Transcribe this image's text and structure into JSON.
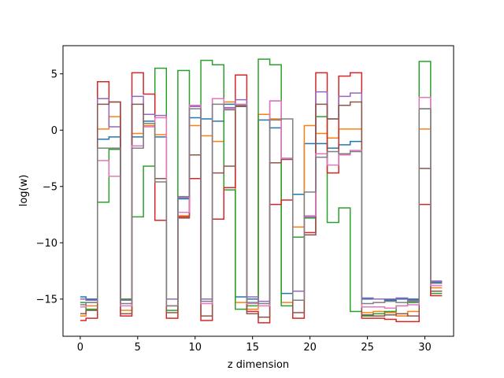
{
  "chart_data": {
    "type": "line",
    "step": true,
    "title": "",
    "xlabel": "z dimension",
    "ylabel": "log(w)",
    "xlim": [
      -1.5,
      32.5
    ],
    "ylim": [
      -18.3,
      7.5
    ],
    "xticks": [
      0,
      5,
      10,
      15,
      20,
      25,
      30
    ],
    "yticks": [
      -15,
      -10,
      -5,
      0,
      5
    ],
    "ytick_labels": [
      "−15",
      "−10",
      "−5",
      "0",
      "5"
    ],
    "grid": false,
    "legend": "none",
    "x": [
      0,
      1,
      2,
      3,
      4,
      5,
      6,
      7,
      8,
      9,
      10,
      11,
      12,
      13,
      14,
      15,
      16,
      17,
      18,
      19,
      20,
      21,
      22,
      23,
      24,
      25,
      26,
      27,
      28,
      29,
      30,
      31
    ],
    "series": [
      {
        "color": "#1f77b4",
        "values": [
          -14.8,
          -15.0,
          -0.8,
          -0.6,
          -15.0,
          -0.6,
          0.8,
          -0.6,
          -15.0,
          -6.1,
          1.1,
          1.0,
          0.8,
          2.3,
          -14.8,
          -15.0,
          0.9,
          0.2,
          -14.5,
          -5.7,
          -1.2,
          -1.2,
          -1.6,
          -1.3,
          -1.0,
          -15.0,
          -15.0,
          -15.1,
          -15.0,
          -15.0,
          1.9,
          -13.5
        ]
      },
      {
        "color": "#ff7f0e",
        "values": [
          -16.5,
          -15.6,
          0.1,
          1.2,
          -16.0,
          -0.3,
          0.4,
          -0.4,
          -15.6,
          -7.6,
          0.4,
          -0.5,
          -1.0,
          2.5,
          -15.3,
          -15.9,
          1.4,
          1.0,
          -15.3,
          -8.6,
          0.4,
          -0.3,
          -0.7,
          0.1,
          0.1,
          -16.2,
          -16.1,
          -16.2,
          -16.5,
          -16.1,
          0.1,
          -14.0
        ]
      },
      {
        "color": "#2ca02c",
        "values": [
          -15.3,
          -15.9,
          -6.4,
          -1.7,
          -15.0,
          -7.7,
          -3.2,
          5.5,
          -16.0,
          5.3,
          -4.3,
          6.2,
          5.8,
          -5.3,
          -15.9,
          -15.6,
          6.3,
          5.8,
          -15.6,
          -9.5,
          -7.8,
          1.2,
          -8.2,
          -6.9,
          -16.1,
          -16.5,
          -16.3,
          -16.1,
          -15.6,
          -15.3,
          6.1,
          -14.5
        ]
      },
      {
        "color": "#d62728",
        "values": [
          -16.9,
          -16.7,
          4.3,
          2.5,
          -16.5,
          5.1,
          3.2,
          -8.0,
          -16.7,
          -7.7,
          -4.3,
          -16.9,
          -7.9,
          -5.1,
          4.9,
          -16.1,
          -17.1,
          -6.6,
          -6.2,
          -16.7,
          -9.1,
          5.1,
          -3.8,
          4.8,
          5.1,
          -16.7,
          -16.7,
          -16.8,
          -17.0,
          -17.0,
          -6.6,
          -14.7
        ]
      },
      {
        "color": "#9467bd",
        "values": [
          -15.0,
          -15.1,
          2.8,
          0.3,
          -15.1,
          3.0,
          1.4,
          1.3,
          -15.0,
          -6.0,
          2.1,
          -15.0,
          2.8,
          2.0,
          2.7,
          -14.8,
          -15.2,
          2.6,
          -2.5,
          -14.3,
          -7.7,
          3.4,
          1.0,
          3.0,
          3.3,
          -14.9,
          -15.0,
          -15.0,
          -14.9,
          -15.1,
          2.9,
          -13.4
        ]
      },
      {
        "color": "#8c564b",
        "values": [
          -16.3,
          -16.0,
          2.3,
          2.5,
          -16.3,
          2.3,
          0.6,
          -4.3,
          -16.2,
          -7.8,
          -2.2,
          -16.5,
          -3.8,
          -3.2,
          2.1,
          -16.3,
          -16.6,
          -2.9,
          -2.6,
          -16.2,
          -9.3,
          2.3,
          1.0,
          2.2,
          2.5,
          -16.4,
          -16.5,
          -16.4,
          -16.3,
          -16.5,
          -3.4,
          -14.3
        ]
      },
      {
        "color": "#e377c2",
        "values": [
          -15.7,
          -15.3,
          -2.7,
          -4.1,
          -15.6,
          -1.4,
          0.3,
          1.1,
          -15.6,
          -7.3,
          2.2,
          -15.4,
          2.8,
          1.9,
          2.3,
          -15.4,
          -15.6,
          2.6,
          -2.5,
          -15.1,
          -7.6,
          -2.1,
          -3.1,
          -2.2,
          -1.8,
          -15.7,
          -15.7,
          -15.8,
          -15.6,
          -15.5,
          2.9,
          -13.8
        ]
      },
      {
        "color": "#7f7f7f",
        "values": [
          -15.5,
          -15.3,
          -1.6,
          -1.6,
          -15.4,
          -1.6,
          0.6,
          -4.6,
          -15.6,
          -5.9,
          1.9,
          -15.2,
          2.3,
          1.8,
          2.2,
          -15.3,
          -15.4,
          0.9,
          1.0,
          -15.1,
          -5.5,
          -2.4,
          -1.9,
          -2.1,
          -1.9,
          -15.4,
          -15.3,
          -15.2,
          -15.3,
          -15.2,
          1.9,
          -13.6
        ]
      }
    ]
  }
}
